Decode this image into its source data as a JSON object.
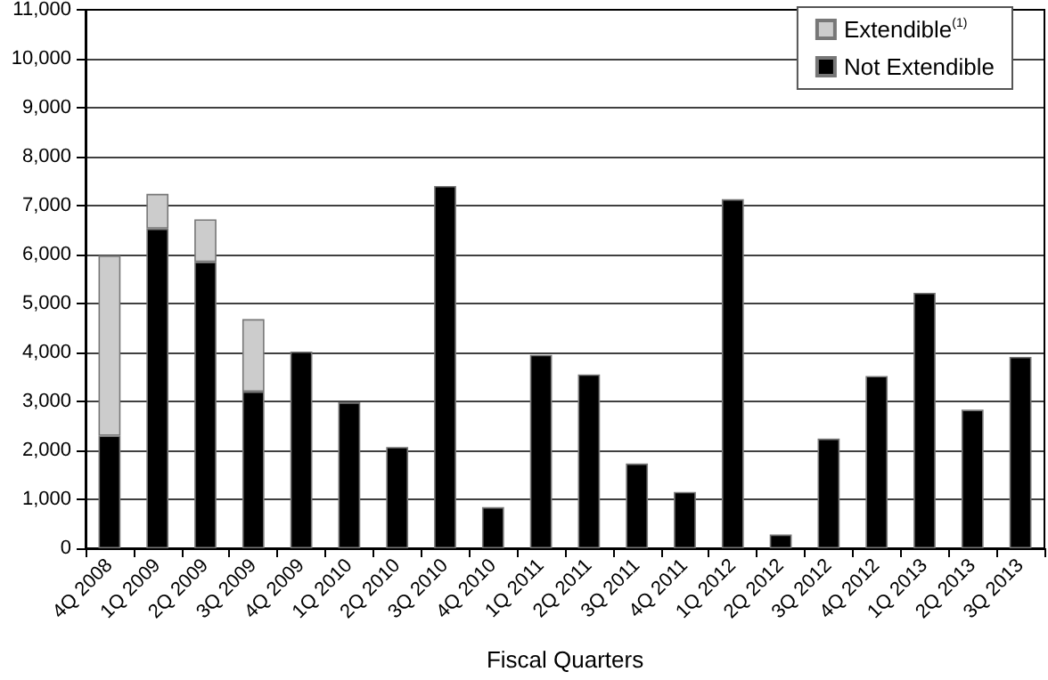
{
  "chart_data": {
    "type": "bar",
    "stacked": true,
    "xlabel": "Fiscal Quarters",
    "categories": [
      "4Q 2008",
      "1Q 2009",
      "2Q 2009",
      "3Q 2009",
      "4Q 2009",
      "1Q 2010",
      "2Q 2010",
      "3Q 2010",
      "4Q 2010",
      "1Q 2011",
      "2Q 2011",
      "3Q 2011",
      "4Q 2011",
      "1Q 2012",
      "2Q 2012",
      "3Q 2012",
      "4Q 2012",
      "1Q 2013",
      "2Q 2013",
      "3Q 2013"
    ],
    "series": [
      {
        "name": "Not Extendible",
        "color": "#000000",
        "values": [
          2300,
          6530,
          5850,
          3200,
          4020,
          2980,
          2070,
          7400,
          840,
          3950,
          3550,
          1730,
          1150,
          7130,
          280,
          2240,
          3520,
          5220,
          2830,
          3910
        ]
      },
      {
        "name": "Extendible$^{(1)}$",
        "color": "#cccccc",
        "values": [
          3680,
          710,
          870,
          1480,
          null,
          null,
          null,
          null,
          null,
          null,
          null,
          null,
          null,
          null,
          null,
          null,
          null,
          null,
          null,
          null
        ]
      }
    ],
    "ylim": [
      0,
      11000
    ],
    "yticks": [
      0,
      {
        "value": 1000,
        "label": "1,000"
      },
      {
        "value": 2000,
        "label": "2,000"
      },
      {
        "value": 3000,
        "label": "3,000"
      },
      {
        "value": 4000,
        "label": "4,000"
      },
      {
        "value": 5000,
        "label": "5,000"
      },
      {
        "value": 6000,
        "label": "6,000"
      },
      {
        "value": 7000,
        "label": "7,000"
      },
      {
        "value": 8000,
        "label": "8,000"
      },
      {
        "value": 9000,
        "label": "9,000"
      },
      {
        "value": 10000,
        "label": "10,000"
      },
      {
        "value": 11000,
        "label": "11,000"
      }
    ],
    "grid": "y",
    "legend": "top right"
  }
}
